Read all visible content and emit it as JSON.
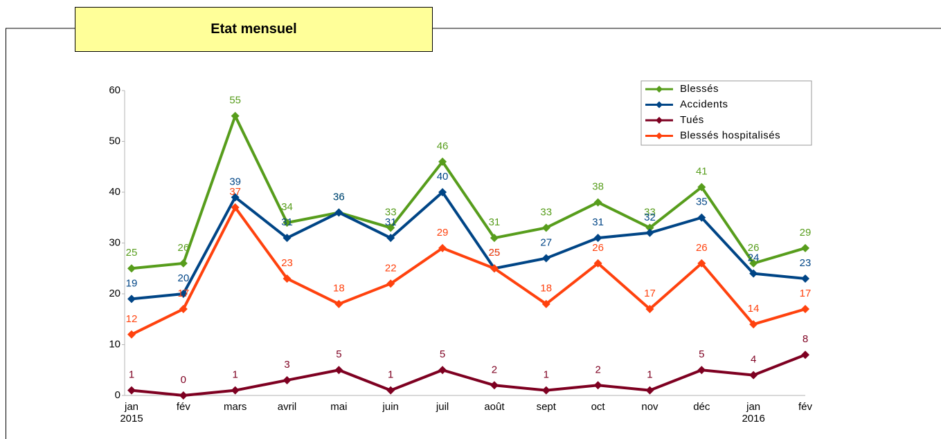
{
  "panel_title": "Etat mensuel",
  "chart_data": {
    "type": "line",
    "categories": [
      "jan\n2015",
      "fév",
      "mars",
      "avril",
      "mai",
      "juin",
      "juil",
      "août",
      "sept",
      "oct",
      "nov",
      "déc",
      "jan\n2016",
      "fév"
    ],
    "series": [
      {
        "name": "Blessés",
        "color": "#579d1c",
        "values": [
          25,
          26,
          55,
          34,
          36,
          33,
          46,
          31,
          33,
          38,
          33,
          41,
          26,
          29
        ]
      },
      {
        "name": "Accidents",
        "color": "#004586",
        "values": [
          19,
          20,
          39,
          31,
          36,
          31,
          40,
          25,
          27,
          31,
          32,
          35,
          24,
          23
        ]
      },
      {
        "name": "Tués",
        "color": "#7e0021",
        "values": [
          1,
          0,
          1,
          3,
          5,
          1,
          5,
          2,
          1,
          2,
          1,
          5,
          4,
          8
        ]
      },
      {
        "name": "Blessés hospitalisés",
        "color": "#ff420e",
        "values": [
          12,
          17,
          37,
          23,
          18,
          22,
          29,
          25,
          18,
          26,
          17,
          26,
          14,
          17
        ]
      }
    ],
    "ylim": [
      0,
      60
    ],
    "yticks": [
      0,
      10,
      20,
      30,
      40,
      50,
      60
    ],
    "legend": "top-right",
    "data_labels": true
  }
}
